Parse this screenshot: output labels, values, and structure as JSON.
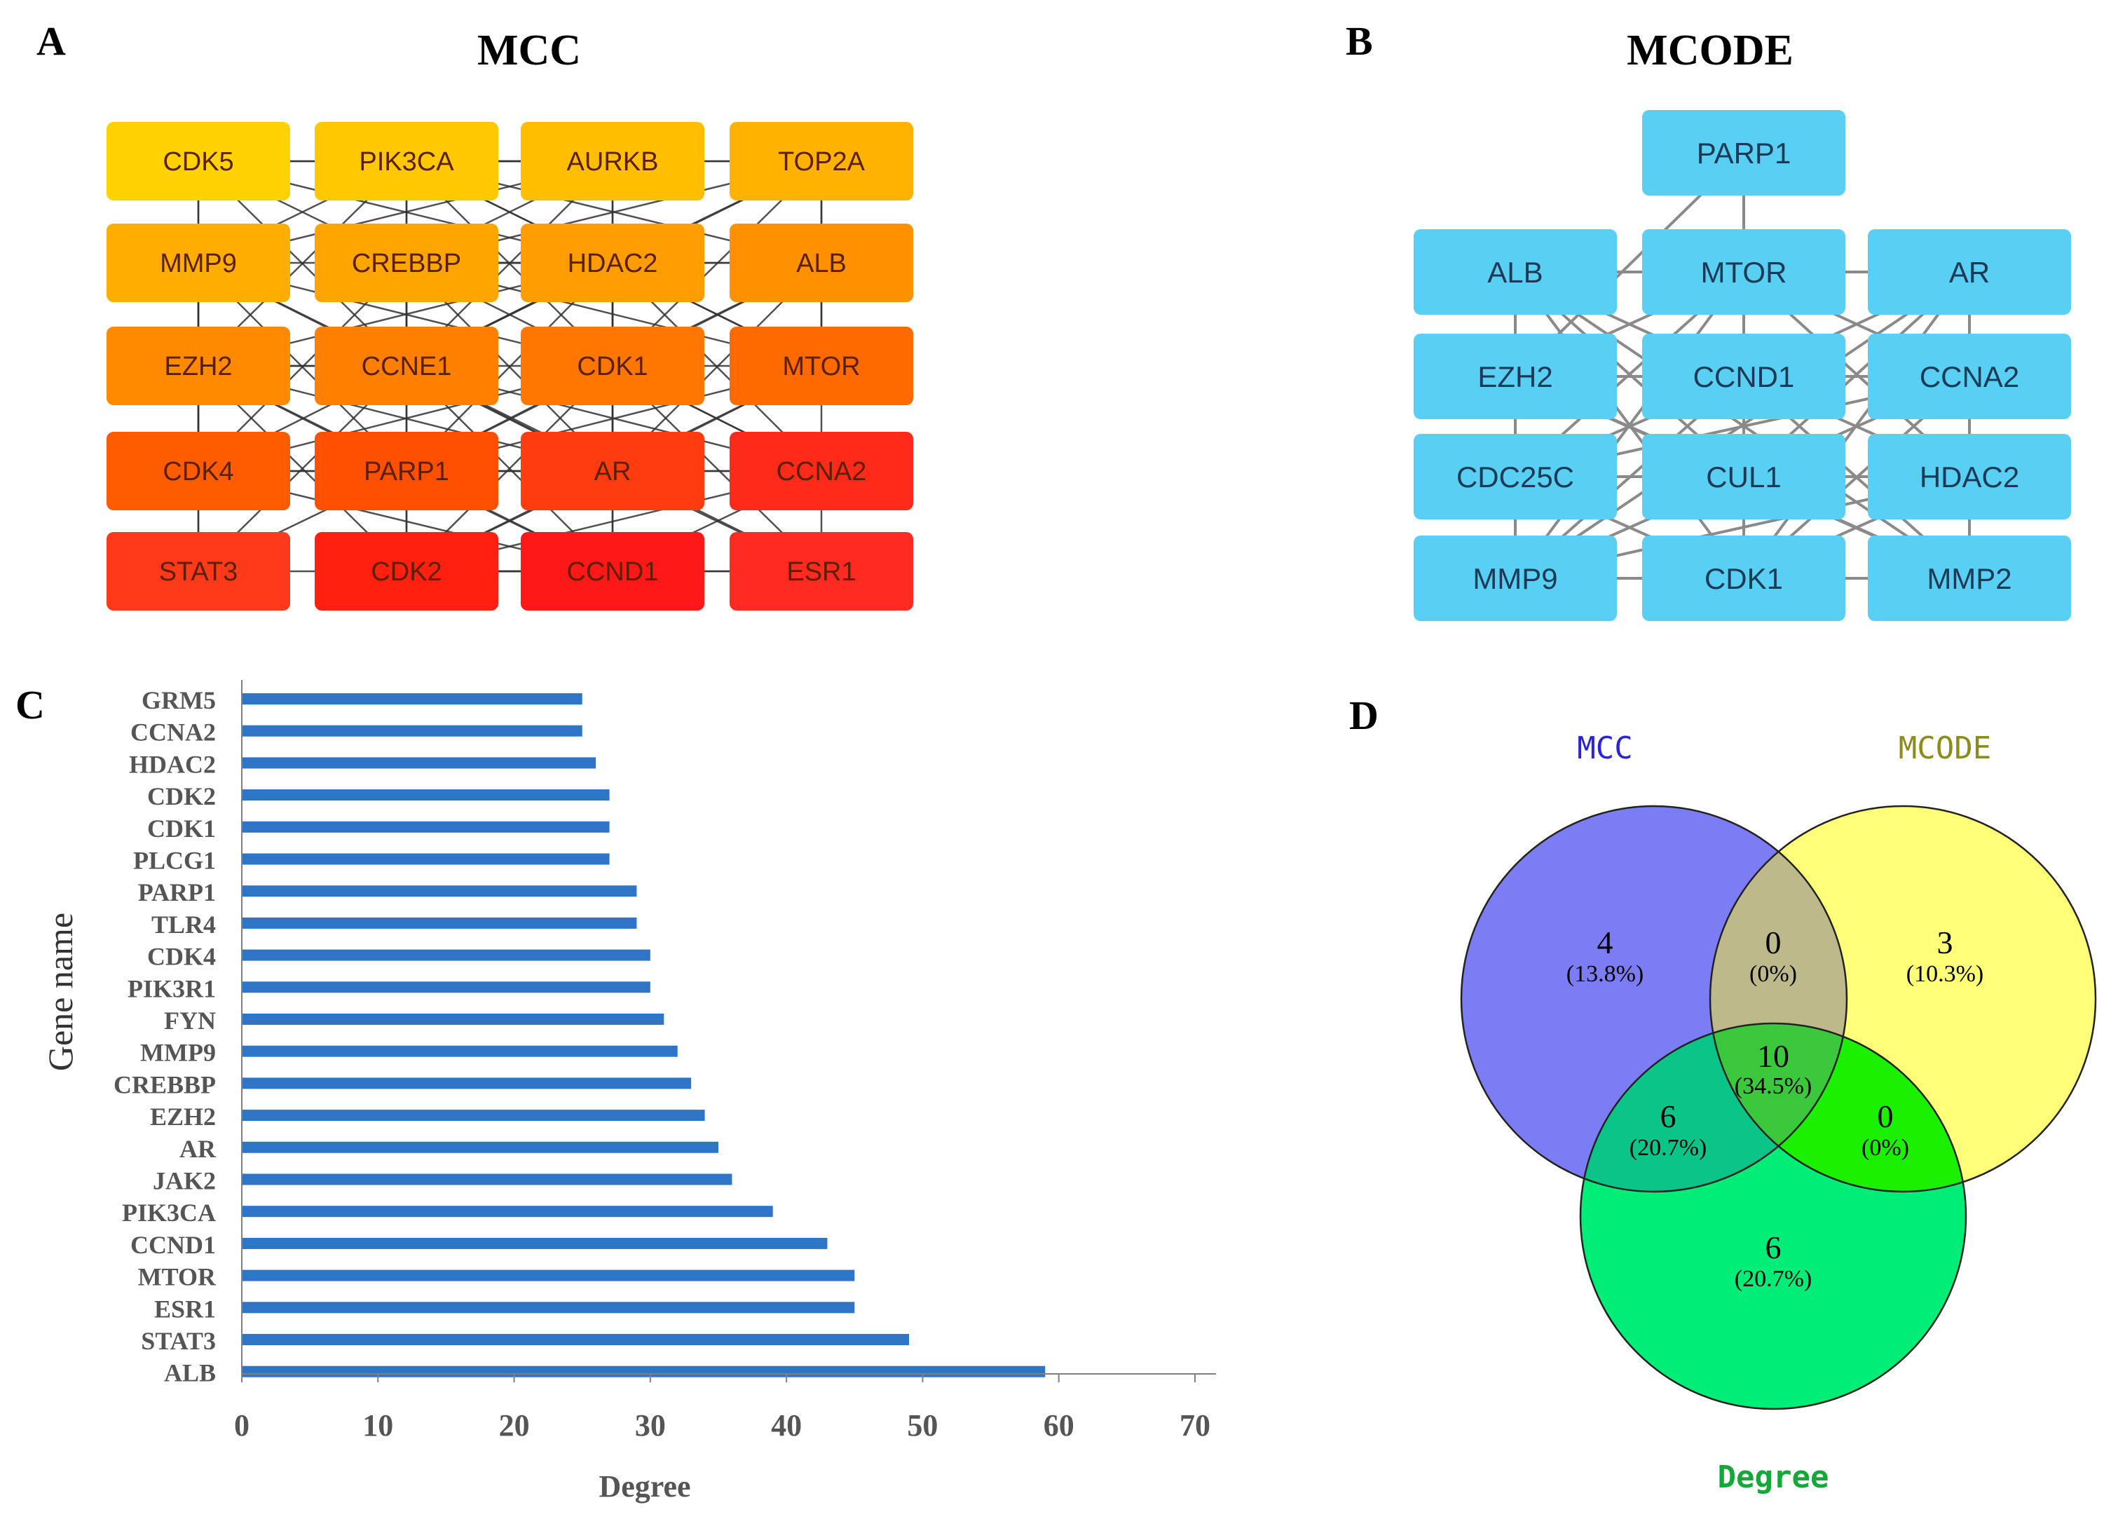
{
  "panels": {
    "a": {
      "letter": "A",
      "title": "MCC"
    },
    "b": {
      "letter": "B",
      "title": "MCODE"
    },
    "c": {
      "letter": "C"
    },
    "d": {
      "letter": "D"
    }
  },
  "network_a": {
    "rows": [
      [
        "CDK5",
        "PIK3CA",
        "AURKB",
        "TOP2A"
      ],
      [
        "MMP9",
        "CREBBP",
        "HDAC2",
        "ALB"
      ],
      [
        "EZH2",
        "CCNE1",
        "CDK1",
        "MTOR"
      ],
      [
        "CDK4",
        "PARP1",
        "AR",
        "CCNA2"
      ],
      [
        "STAT3",
        "CDK2",
        "CCND1",
        "ESR1"
      ]
    ],
    "colors": [
      [
        "#FFD200",
        "#FFC800",
        "#FFBE00",
        "#FFB200"
      ],
      [
        "#FFAE00",
        "#FFA500",
        "#FF9C00",
        "#FF9000"
      ],
      [
        "#FF8A00",
        "#FF8000",
        "#FF7600",
        "#FF6A00"
      ],
      [
        "#FF5C00",
        "#FF4F00",
        "#FF3C10",
        "#FF2A1A"
      ],
      [
        "#FF3A1A",
        "#FF2010",
        "#FF1818",
        "#FF2A20"
      ]
    ]
  },
  "network_b": {
    "top": "PARP1",
    "rows": [
      [
        "ALB",
        "MTOR",
        "AR"
      ],
      [
        "EZH2",
        "CCND1",
        "CCNA2"
      ],
      [
        "CDC25C",
        "CUL1",
        "HDAC2"
      ],
      [
        "MMP9",
        "CDK1",
        "MMP2"
      ]
    ],
    "color": "#59CFF3"
  },
  "chart_data": {
    "type": "bar",
    "orientation": "horizontal",
    "categories": [
      "GRM5",
      "CCNA2",
      "HDAC2",
      "CDK2",
      "CDK1",
      "PLCG1",
      "PARP1",
      "TLR4",
      "CDK4",
      "PIK3R1",
      "FYN",
      "MMP9",
      "CREBBP",
      "EZH2",
      "AR",
      "JAK2",
      "PIK3CA",
      "CCND1",
      "MTOR",
      "ESR1",
      "STAT3",
      "ALB"
    ],
    "values": [
      25,
      25,
      26,
      27,
      27,
      27,
      29,
      29,
      30,
      30,
      31,
      32,
      33,
      34,
      35,
      36,
      39,
      43,
      45,
      45,
      49,
      59
    ],
    "xlabel": "Degree",
    "ylabel": "Gene name",
    "xlim": [
      0,
      70
    ],
    "xticks": [
      0,
      10,
      20,
      30,
      40,
      50,
      60,
      70
    ],
    "bar_color": "#2E75C8"
  },
  "venn": {
    "sets": [
      {
        "name": "MCC",
        "label_color": "#2A22DD",
        "fill": "#7C7CF5"
      },
      {
        "name": "MCODE",
        "label_color": "#8C8C18",
        "fill": "#FFFF78"
      },
      {
        "name": "Degree",
        "label_color": "#14A838",
        "fill": "#00EE78"
      }
    ],
    "regions": {
      "mcc_only": {
        "count": "4",
        "pct": "(13.8%)"
      },
      "mcc_mcode": {
        "count": "0",
        "pct": "(0%)"
      },
      "mcode_only": {
        "count": "3",
        "pct": "(10.3%)"
      },
      "all_three": {
        "count": "10",
        "pct": "(34.5%)"
      },
      "mcc_degree": {
        "count": "6",
        "pct": "(20.7%)"
      },
      "mcode_degree": {
        "count": "0",
        "pct": "(0%)"
      },
      "degree_only": {
        "count": "6",
        "pct": "(20.7%)"
      }
    }
  }
}
